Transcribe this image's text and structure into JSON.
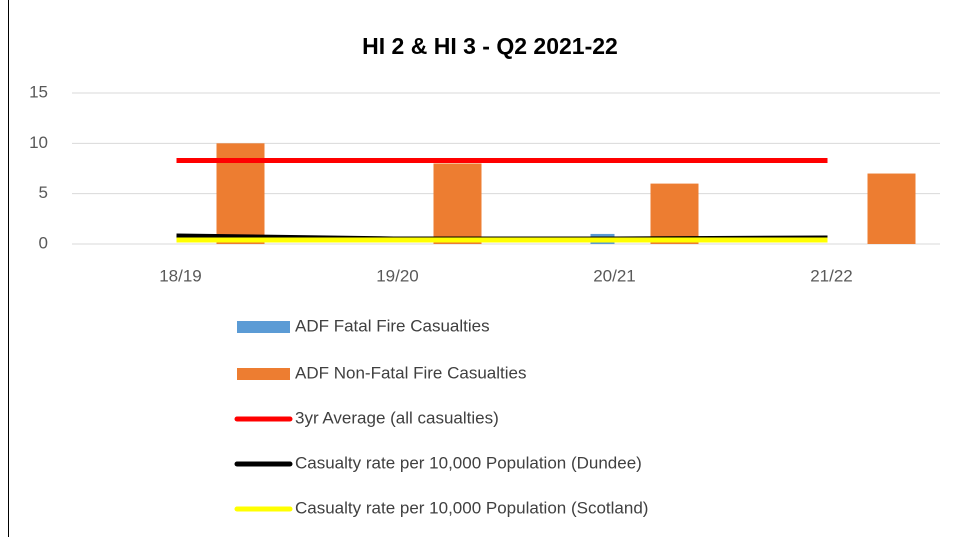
{
  "chart_data": {
    "type": "bar",
    "title": "HI 2 & HI 3 - Q2 2021-22",
    "categories": [
      "18/19",
      "19/20",
      "20/21",
      "21/22"
    ],
    "series": [
      {
        "name": "ADF Fatal Fire Casualties",
        "color": "#5b9bd5",
        "type": "bar",
        "values": [
          0,
          0,
          1,
          0
        ]
      },
      {
        "name": "ADF Non-Fatal Fire Casualties",
        "color": "#ed7d31",
        "type": "bar",
        "values": [
          10,
          8,
          6,
          7
        ]
      },
      {
        "name": "3yr Average (all casualties)",
        "color": "#ff0000",
        "type": "line",
        "values": [
          8.3,
          8.3,
          8.3,
          8.3
        ]
      },
      {
        "name": "Casualty rate per 10,000 Population (Dundee)",
        "color": "#000000",
        "type": "line",
        "values": [
          0.8,
          0.5,
          0.5,
          0.6
        ]
      },
      {
        "name": "Casualty rate per 10,000 Population (Scotland)",
        "color": "#ffff00",
        "type": "line",
        "values": [
          0.4,
          0.4,
          0.4,
          0.4
        ]
      }
    ],
    "ylim": [
      0,
      15
    ],
    "yticks": [
      0,
      5,
      10,
      15
    ],
    "grid": true
  }
}
